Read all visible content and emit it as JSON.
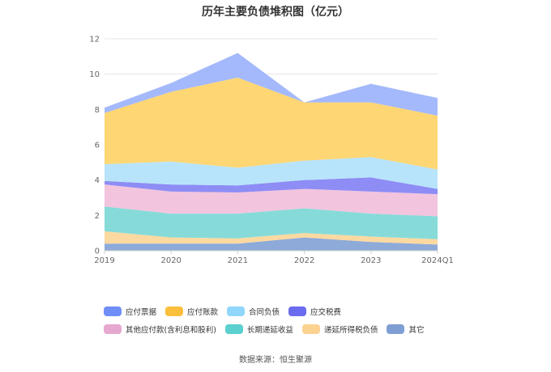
{
  "chart_data": {
    "type": "area",
    "stacked": true,
    "title": "历年主要负债堆积图（亿元）",
    "categories": [
      "2019",
      "2020",
      "2021",
      "2022",
      "2023",
      "2024Q1"
    ],
    "ylim": [
      0,
      12
    ],
    "yticks": [
      0,
      2,
      4,
      6,
      8,
      10,
      12
    ],
    "grid": true,
    "legend_position": "bottom",
    "series": [
      {
        "name": "其它",
        "color": "#8eaad9",
        "values": [
          0.4,
          0.4,
          0.4,
          0.75,
          0.5,
          0.35
        ]
      },
      {
        "name": "递延所得税负债",
        "color": "#fcd9a0",
        "values": [
          0.7,
          0.35,
          0.3,
          0.25,
          0.3,
          0.3
        ]
      },
      {
        "name": "长期递延收益",
        "color": "#86dbd9",
        "values": [
          1.4,
          1.35,
          1.4,
          1.4,
          1.3,
          1.3
        ]
      },
      {
        "name": "其他应付款(含利息和股利)",
        "color": "#f2c4de",
        "values": [
          1.25,
          1.25,
          1.2,
          1.1,
          1.25,
          1.25
        ]
      },
      {
        "name": "应交税费",
        "color": "#8d8df5",
        "values": [
          0.2,
          0.4,
          0.4,
          0.5,
          0.8,
          0.3
        ]
      },
      {
        "name": "合同负债",
        "color": "#b8e4fb",
        "values": [
          0.95,
          1.3,
          1.0,
          1.1,
          1.15,
          1.1
        ]
      },
      {
        "name": "应付账款",
        "color": "#fed674",
        "values": [
          2.9,
          3.95,
          5.1,
          3.3,
          3.1,
          3.05
        ]
      },
      {
        "name": "应付票据",
        "color": "#a4b9fb",
        "values": [
          0.3,
          0.5,
          1.4,
          0.0,
          1.05,
          1.0
        ]
      }
    ],
    "legend_order": [
      "应付票据",
      "应付账款",
      "合同负债",
      "应交税费",
      "其他应付款(含利息和股利)",
      "长期递延收益",
      "递延所得税负债",
      "其它"
    ],
    "legend_colors": [
      "#6f8ff7",
      "#fbbf3c",
      "#8fd6fa",
      "#6b6bef",
      "#e6a8cf",
      "#5ccfcf",
      "#fcd291",
      "#7f9fd4"
    ],
    "source": "数据来源：恒生聚源"
  }
}
